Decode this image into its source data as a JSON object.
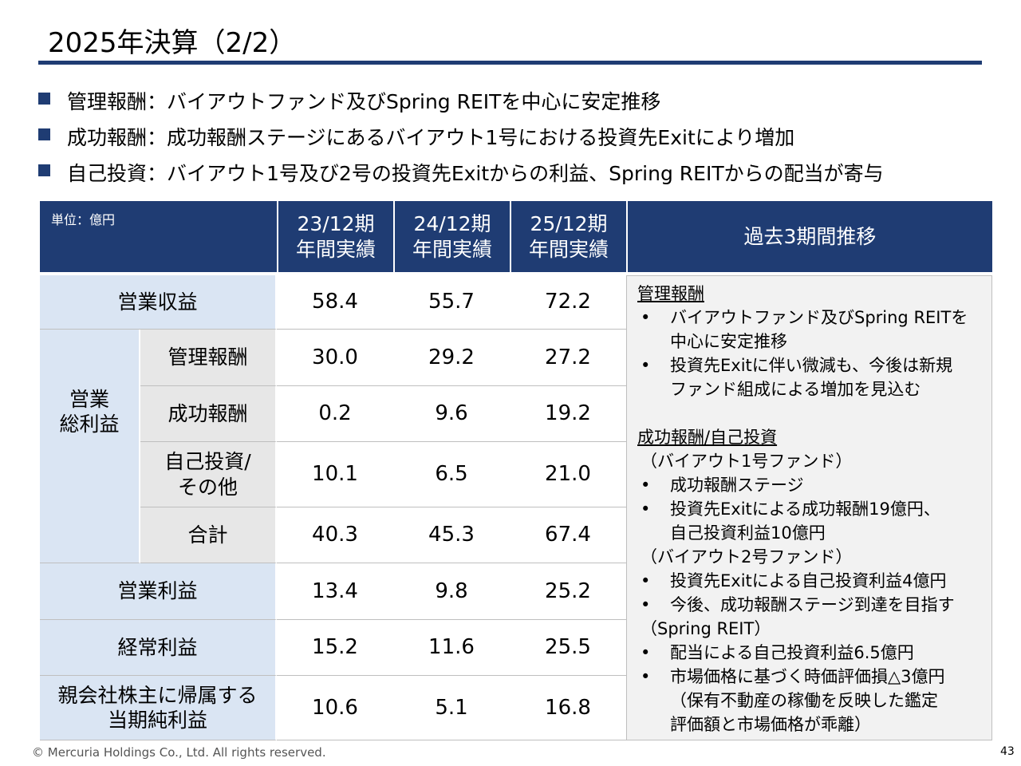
{
  "title": "2025年決算（2/2）",
  "bullets": [
    "管理報酬：バイアウトファンド及びSpring REITを中心に安定推移",
    "成功報酬：成功報酬ステージにあるバイアウト1号における投資先Exitにより増加",
    "自己投資：バイアウト1号及び2号の投資先Exitからの利益、Spring REITからの配当が寄与"
  ],
  "table": {
    "unit": "単位：億円",
    "headers": [
      [
        "23/12期",
        "年間実績"
      ],
      [
        "24/12期",
        "年間実績"
      ],
      [
        "25/12期",
        "年間実績"
      ]
    ],
    "trend_header": "過去3期間推移",
    "rows": [
      {
        "label": [
          "営業収益"
        ],
        "values": [
          "58.4",
          "55.7",
          "72.2"
        ]
      },
      {
        "label": [
          "営業",
          "総利益"
        ],
        "rows": [
          {
            "label": [
              "管理報酬"
            ],
            "values": [
              "30.0",
              "29.2",
              "27.2"
            ]
          },
          {
            "label": [
              "成功報酬"
            ],
            "values": [
              "0.2",
              "9.6",
              "19.2"
            ]
          },
          {
            "label": [
              "自己投資/",
              "その他"
            ],
            "values": [
              "10.1",
              "6.5",
              "21.0"
            ]
          },
          {
            "label": [
              "合計"
            ],
            "values": [
              "40.3",
              "45.3",
              "67.4"
            ]
          }
        ]
      },
      {
        "label": [
          "営業利益"
        ],
        "values": [
          "13.4",
          "9.8",
          "25.2"
        ]
      },
      {
        "label": [
          "経常利益"
        ],
        "values": [
          "15.2",
          "11.6",
          "25.5"
        ]
      },
      {
        "label": [
          "親会社株主に帰属する",
          "当期純利益"
        ],
        "values": [
          "10.6",
          "5.1",
          "16.8"
        ]
      }
    ],
    "notes": [
      {
        "heading": "管理報酬",
        "groups": [
          {
            "bullets": [
              [
                "バイアウトファンド及びSpring REITを",
                "中心に安定推移"
              ],
              [
                "投資先Exitに伴い微減も、今後は新規",
                "ファンド組成による増加を見込む"
              ]
            ]
          }
        ]
      },
      {
        "heading": "成功報酬/自己投資",
        "groups": [
          {
            "label": "（バイアウト1号ファンド）",
            "bullets": [
              [
                "成功報酬ステージ"
              ],
              [
                "投資先Exitによる成功報酬19億円、",
                "自己投資利益10億円"
              ]
            ]
          },
          {
            "label": "（バイアウト2号ファンド）",
            "bullets": [
              [
                "投資先Exitによる自己投資利益4億円"
              ],
              [
                "今後、成功報酬ステージ到達を目指す"
              ]
            ]
          },
          {
            "label": "（Spring REIT）",
            "bullets": [
              [
                "配当による自己投資利益6.5億円"
              ],
              [
                "市場価格に基づく時価評価損△3億円",
                "（保有不動産の稼働を反映した鑑定",
                "評価額と市場価格が乖離）"
              ]
            ]
          }
        ]
      }
    ]
  },
  "footer": "© Mercuria Holdings Co., Ltd. All rights reserved.",
  "page_number": "43"
}
